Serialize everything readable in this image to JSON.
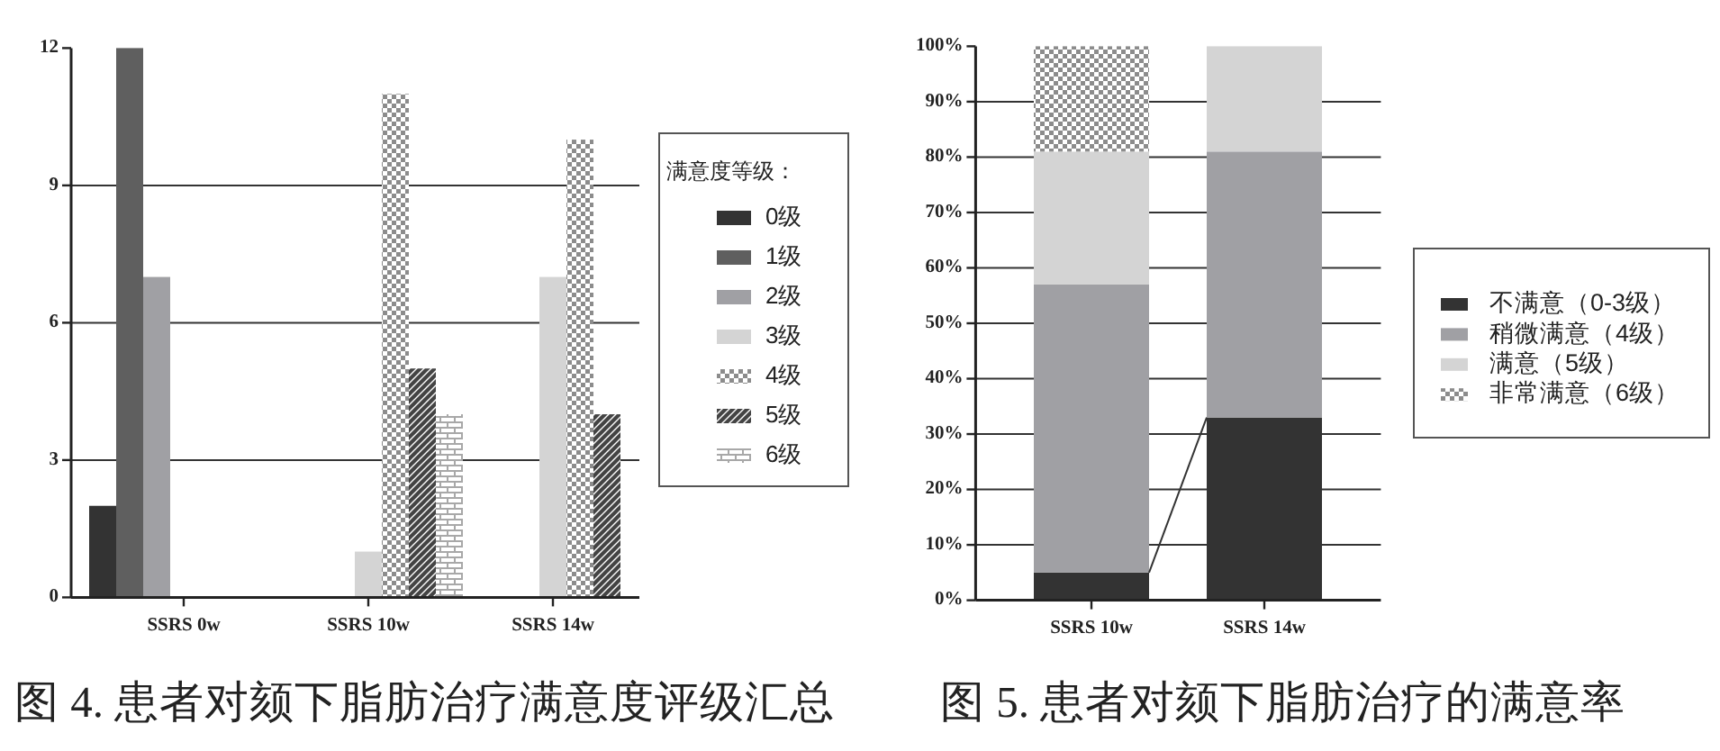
{
  "chart_data": [
    {
      "type": "bar",
      "title": "图 4. 患者对颏下脂肪治疗满意度评级汇总",
      "legend_title": "满意度等级：",
      "categories": [
        "SSRS 0w",
        "SSRS 10w",
        "SSRS 14w"
      ],
      "series": [
        {
          "name": "0级",
          "color": "#333333",
          "values": [
            2,
            0,
            0
          ]
        },
        {
          "name": "1级",
          "color": "#5f5f5f",
          "values": [
            12,
            0,
            0
          ]
        },
        {
          "name": "2级",
          "color": "#a0a0a4",
          "values": [
            7,
            0,
            0
          ]
        },
        {
          "name": "3级",
          "color": "#d4d4d4",
          "values": [
            0,
            1,
            7
          ]
        },
        {
          "name": "4级",
          "color": "#8c8c8c",
          "values": [
            0,
            11,
            10
          ]
        },
        {
          "name": "5级",
          "color": "#444444",
          "values": [
            0,
            5,
            4
          ]
        },
        {
          "name": "6级",
          "color": "#a8a8a8",
          "values": [
            0,
            4,
            0
          ]
        }
      ],
      "ylim": [
        0,
        12
      ],
      "yticks": [
        0,
        3,
        6,
        9,
        12
      ],
      "grid": "y",
      "legend": "right"
    },
    {
      "type": "bar",
      "stacked": true,
      "title": "图 5. 患者对颏下脂肪治疗的满意率",
      "categories": [
        "SSRS 10w",
        "SSRS 14w"
      ],
      "series": [
        {
          "name": "不满意（0-3级）",
          "color": "#333333",
          "values": [
            5,
            33
          ]
        },
        {
          "name": "稍微满意（4级）",
          "color": "#a0a0a4",
          "values": [
            52,
            48
          ]
        },
        {
          "name": "满意（5级）",
          "color": "#d4d4d4",
          "values": [
            24,
            19
          ]
        },
        {
          "name": "非常满意（6级）",
          "color": "#8c8c8c",
          "values": [
            19,
            0
          ]
        }
      ],
      "ylim": [
        0,
        100
      ],
      "yticks": [
        {
          "value": 0,
          "label": "0%"
        },
        {
          "value": 10,
          "label": "10%"
        },
        {
          "value": 20,
          "label": "20%"
        },
        {
          "value": 30,
          "label": "30%"
        },
        {
          "value": 40,
          "label": "40%"
        },
        {
          "value": 50,
          "label": "50%"
        },
        {
          "value": 60,
          "label": "60%"
        },
        {
          "value": 70,
          "label": "70%"
        },
        {
          "value": 80,
          "label": "80%"
        },
        {
          "value": 90,
          "label": "90%"
        },
        {
          "value": 100,
          "label": "100%"
        }
      ],
      "grid": "y",
      "legend": "right"
    }
  ]
}
